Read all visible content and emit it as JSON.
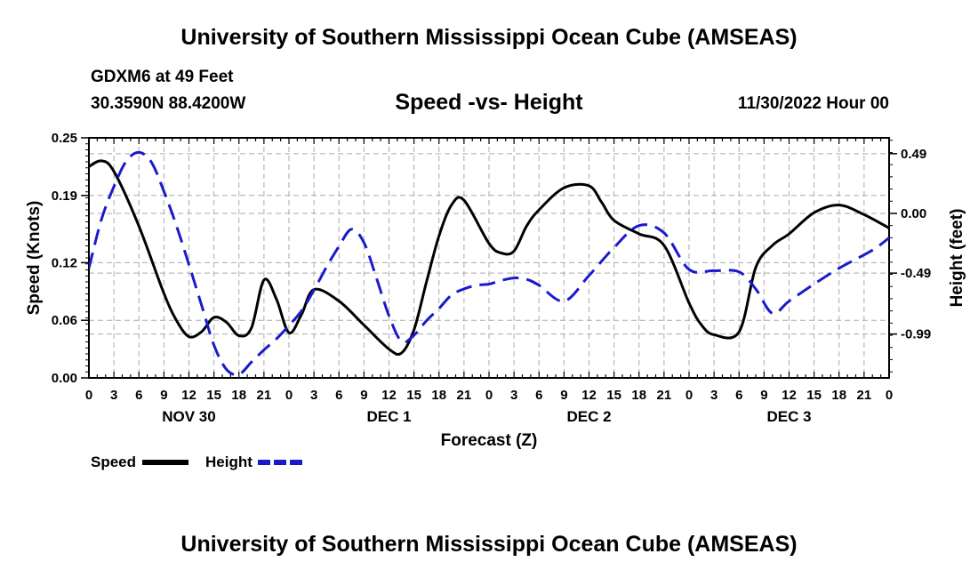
{
  "header": {
    "title": "University of Southern Mississippi Ocean Cube (AMSEAS)",
    "station": "GDXM6 at 49 Feet",
    "coordinates": "30.3590N  88.4200W",
    "subtitle": "Speed -vs- Height",
    "date": "11/30/2022 Hour 00"
  },
  "footer": {
    "title": "University of Southern Mississippi Ocean Cube (AMSEAS)"
  },
  "chart_data": {
    "type": "line",
    "xlabel": "Forecast (Z)",
    "ylabel": "Speed (Knots)",
    "ylabel_right": "Height (feet)",
    "xlim": [
      0,
      96
    ],
    "ylim": [
      0,
      0.25
    ],
    "ylim_right": [
      -1.35,
      0.62
    ],
    "grid": true,
    "x_ticks": [
      0,
      3,
      6,
      9,
      12,
      15,
      18,
      21,
      24,
      27,
      30,
      33,
      36,
      39,
      42,
      45,
      48,
      51,
      54,
      57,
      60,
      63,
      66,
      69,
      72,
      75,
      78,
      81,
      84,
      87,
      90,
      93,
      96
    ],
    "x_tick_labels": [
      "0",
      "3",
      "6",
      "9",
      "12",
      "15",
      "18",
      "21",
      "0",
      "3",
      "6",
      "9",
      "12",
      "15",
      "18",
      "21",
      "0",
      "3",
      "6",
      "9",
      "12",
      "15",
      "18",
      "21",
      "0",
      "3",
      "6",
      "9",
      "12",
      "15",
      "18",
      "21",
      "0"
    ],
    "y_ticks": [
      0.0,
      0.06,
      0.12,
      0.19,
      0.25
    ],
    "y_tick_labels": [
      "0.00",
      "0.06",
      "0.12",
      "0.19",
      "0.25"
    ],
    "y2_ticks": [
      0.49,
      0.0,
      -0.49,
      -0.99
    ],
    "y2_tick_labels": [
      "0.49",
      "0.00",
      "-0.49",
      "-0.99"
    ],
    "day_labels": [
      {
        "x": 12,
        "label": "NOV 30"
      },
      {
        "x": 36,
        "label": "DEC 1"
      },
      {
        "x": 60,
        "label": "DEC 2"
      },
      {
        "x": 84,
        "label": "DEC 3"
      }
    ],
    "legend": [
      {
        "label": "Speed",
        "color": "#000000",
        "dash": "solid"
      },
      {
        "label": "Height",
        "color": "#1a1acc",
        "dash": "dashed"
      }
    ],
    "series": [
      {
        "name": "Speed",
        "axis": "left",
        "color": "#000000",
        "x": [
          0,
          1.5,
          3,
          6,
          9,
          10.5,
          12,
          13.5,
          15,
          16.5,
          18,
          19.5,
          21,
          22.5,
          24,
          25.5,
          27,
          30,
          33,
          36,
          37.5,
          39,
          40.5,
          42,
          43.5,
          45,
          48,
          49.5,
          51,
          52.5,
          54,
          57,
          60,
          61.5,
          63,
          66,
          69,
          72,
          73.5,
          75,
          78,
          80,
          82,
          84,
          87,
          90,
          93,
          96
        ],
        "values": [
          0.22,
          0.226,
          0.215,
          0.158,
          0.088,
          0.06,
          0.043,
          0.048,
          0.063,
          0.058,
          0.044,
          0.052,
          0.102,
          0.082,
          0.047,
          0.066,
          0.092,
          0.08,
          0.055,
          0.03,
          0.026,
          0.05,
          0.1,
          0.148,
          0.18,
          0.185,
          0.14,
          0.13,
          0.132,
          0.158,
          0.175,
          0.198,
          0.2,
          0.183,
          0.164,
          0.15,
          0.138,
          0.078,
          0.055,
          0.045,
          0.048,
          0.115,
          0.138,
          0.15,
          0.172,
          0.18,
          0.17,
          0.156
        ]
      },
      {
        "name": "Height",
        "axis": "right",
        "color": "#1a1acc",
        "x": [
          0,
          1.5,
          3,
          4.5,
          6,
          7.5,
          9,
          10.5,
          12,
          13.5,
          15,
          16.5,
          18,
          19.5,
          21,
          22.5,
          24,
          25.5,
          27,
          28.5,
          30,
          31.5,
          33,
          34.5,
          36,
          37.5,
          39,
          40.5,
          42,
          43.5,
          45,
          46.5,
          48,
          49.5,
          51,
          52.5,
          54,
          57,
          60,
          63,
          66,
          69,
          72,
          75,
          78,
          80,
          82,
          84,
          87,
          90,
          93,
          94.5,
          96
        ],
        "values": [
          -0.45,
          -0.05,
          0.22,
          0.43,
          0.5,
          0.42,
          0.18,
          -0.1,
          -0.42,
          -0.75,
          -1.08,
          -1.28,
          -1.32,
          -1.22,
          -1.12,
          -1.03,
          -0.92,
          -0.8,
          -0.63,
          -0.44,
          -0.27,
          -0.13,
          -0.24,
          -0.53,
          -0.84,
          -1.05,
          -1.0,
          -0.88,
          -0.78,
          -0.67,
          -0.62,
          -0.59,
          -0.58,
          -0.55,
          -0.53,
          -0.54,
          -0.59,
          -0.72,
          -0.51,
          -0.28,
          -0.1,
          -0.16,
          -0.46,
          -0.47,
          -0.48,
          -0.62,
          -0.82,
          -0.72,
          -0.58,
          -0.45,
          -0.34,
          -0.28,
          -0.2
        ]
      }
    ]
  }
}
